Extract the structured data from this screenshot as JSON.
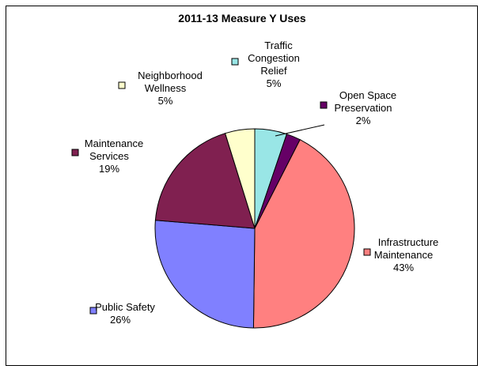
{
  "chart_data": {
    "type": "pie",
    "title": "2011-13 Measure Y Uses",
    "slices": [
      {
        "name": "Traffic Congestion Relief",
        "name_lines": [
          "Traffic",
          "Congestion",
          "Relief"
        ],
        "percent_label": "5%",
        "value": 5.2,
        "color": "#99e6e6"
      },
      {
        "name": "Open Space Preservation",
        "name_lines": [
          "Open Space",
          "Preservation"
        ],
        "percent_label": "2%",
        "value": 2.3,
        "color": "#660066"
      },
      {
        "name": "Infrastructure Maintenance",
        "name_lines": [
          "Infrastructure",
          "Maintenance"
        ],
        "percent_label": "43%",
        "value": 42.7,
        "color": "#ff8080"
      },
      {
        "name": "Public Safety",
        "name_lines": [
          "Public Safety"
        ],
        "percent_label": "26%",
        "value": 26.1,
        "color": "#8080ff"
      },
      {
        "name": "Maintenance Services",
        "name_lines": [
          "Maintenance",
          "Services"
        ],
        "percent_label": "19%",
        "value": 18.9,
        "color": "#802050"
      },
      {
        "name": "Neighborhood Wellness",
        "name_lines": [
          "Neighborhood",
          "Wellness"
        ],
        "percent_label": "5%",
        "value": 4.8,
        "color": "#ffffcc"
      }
    ]
  }
}
